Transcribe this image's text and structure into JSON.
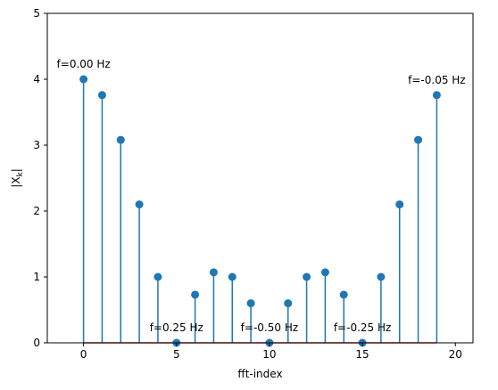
{
  "chart_data": {
    "type": "stem",
    "title": "",
    "xlabel": "fft-index",
    "ylabel": "|X_k|",
    "ylabel_display": {
      "base": "|X",
      "sub": "k",
      "end": "|"
    },
    "xlim": [
      -1.95,
      20.95
    ],
    "ylim": [
      0,
      5
    ],
    "xticks": [
      0,
      5,
      10,
      15,
      20
    ],
    "yticks": [
      0,
      1,
      2,
      3,
      4,
      5
    ],
    "grid": false,
    "stem_color": "#1f77b4",
    "baseline_color": "#d62728",
    "x": [
      0,
      1,
      2,
      3,
      4,
      5,
      6,
      7,
      8,
      9,
      10,
      11,
      12,
      13,
      14,
      15,
      16,
      17,
      18,
      19
    ],
    "values": [
      4.0,
      3.76,
      3.08,
      2.1,
      1.0,
      0.0,
      0.73,
      1.07,
      1.0,
      0.6,
      0.0,
      0.6,
      1.0,
      1.07,
      0.73,
      0.0,
      1.0,
      2.1,
      3.08,
      3.76
    ],
    "annotations": [
      {
        "x": 0,
        "text": "f=0.00 Hz"
      },
      {
        "x": 5,
        "text": "f=0.25 Hz"
      },
      {
        "x": 10,
        "text": "f=-0.50 Hz"
      },
      {
        "x": 15,
        "text": "f=-0.25 Hz"
      },
      {
        "x": 19,
        "text": "f=-0.05 Hz"
      }
    ]
  }
}
